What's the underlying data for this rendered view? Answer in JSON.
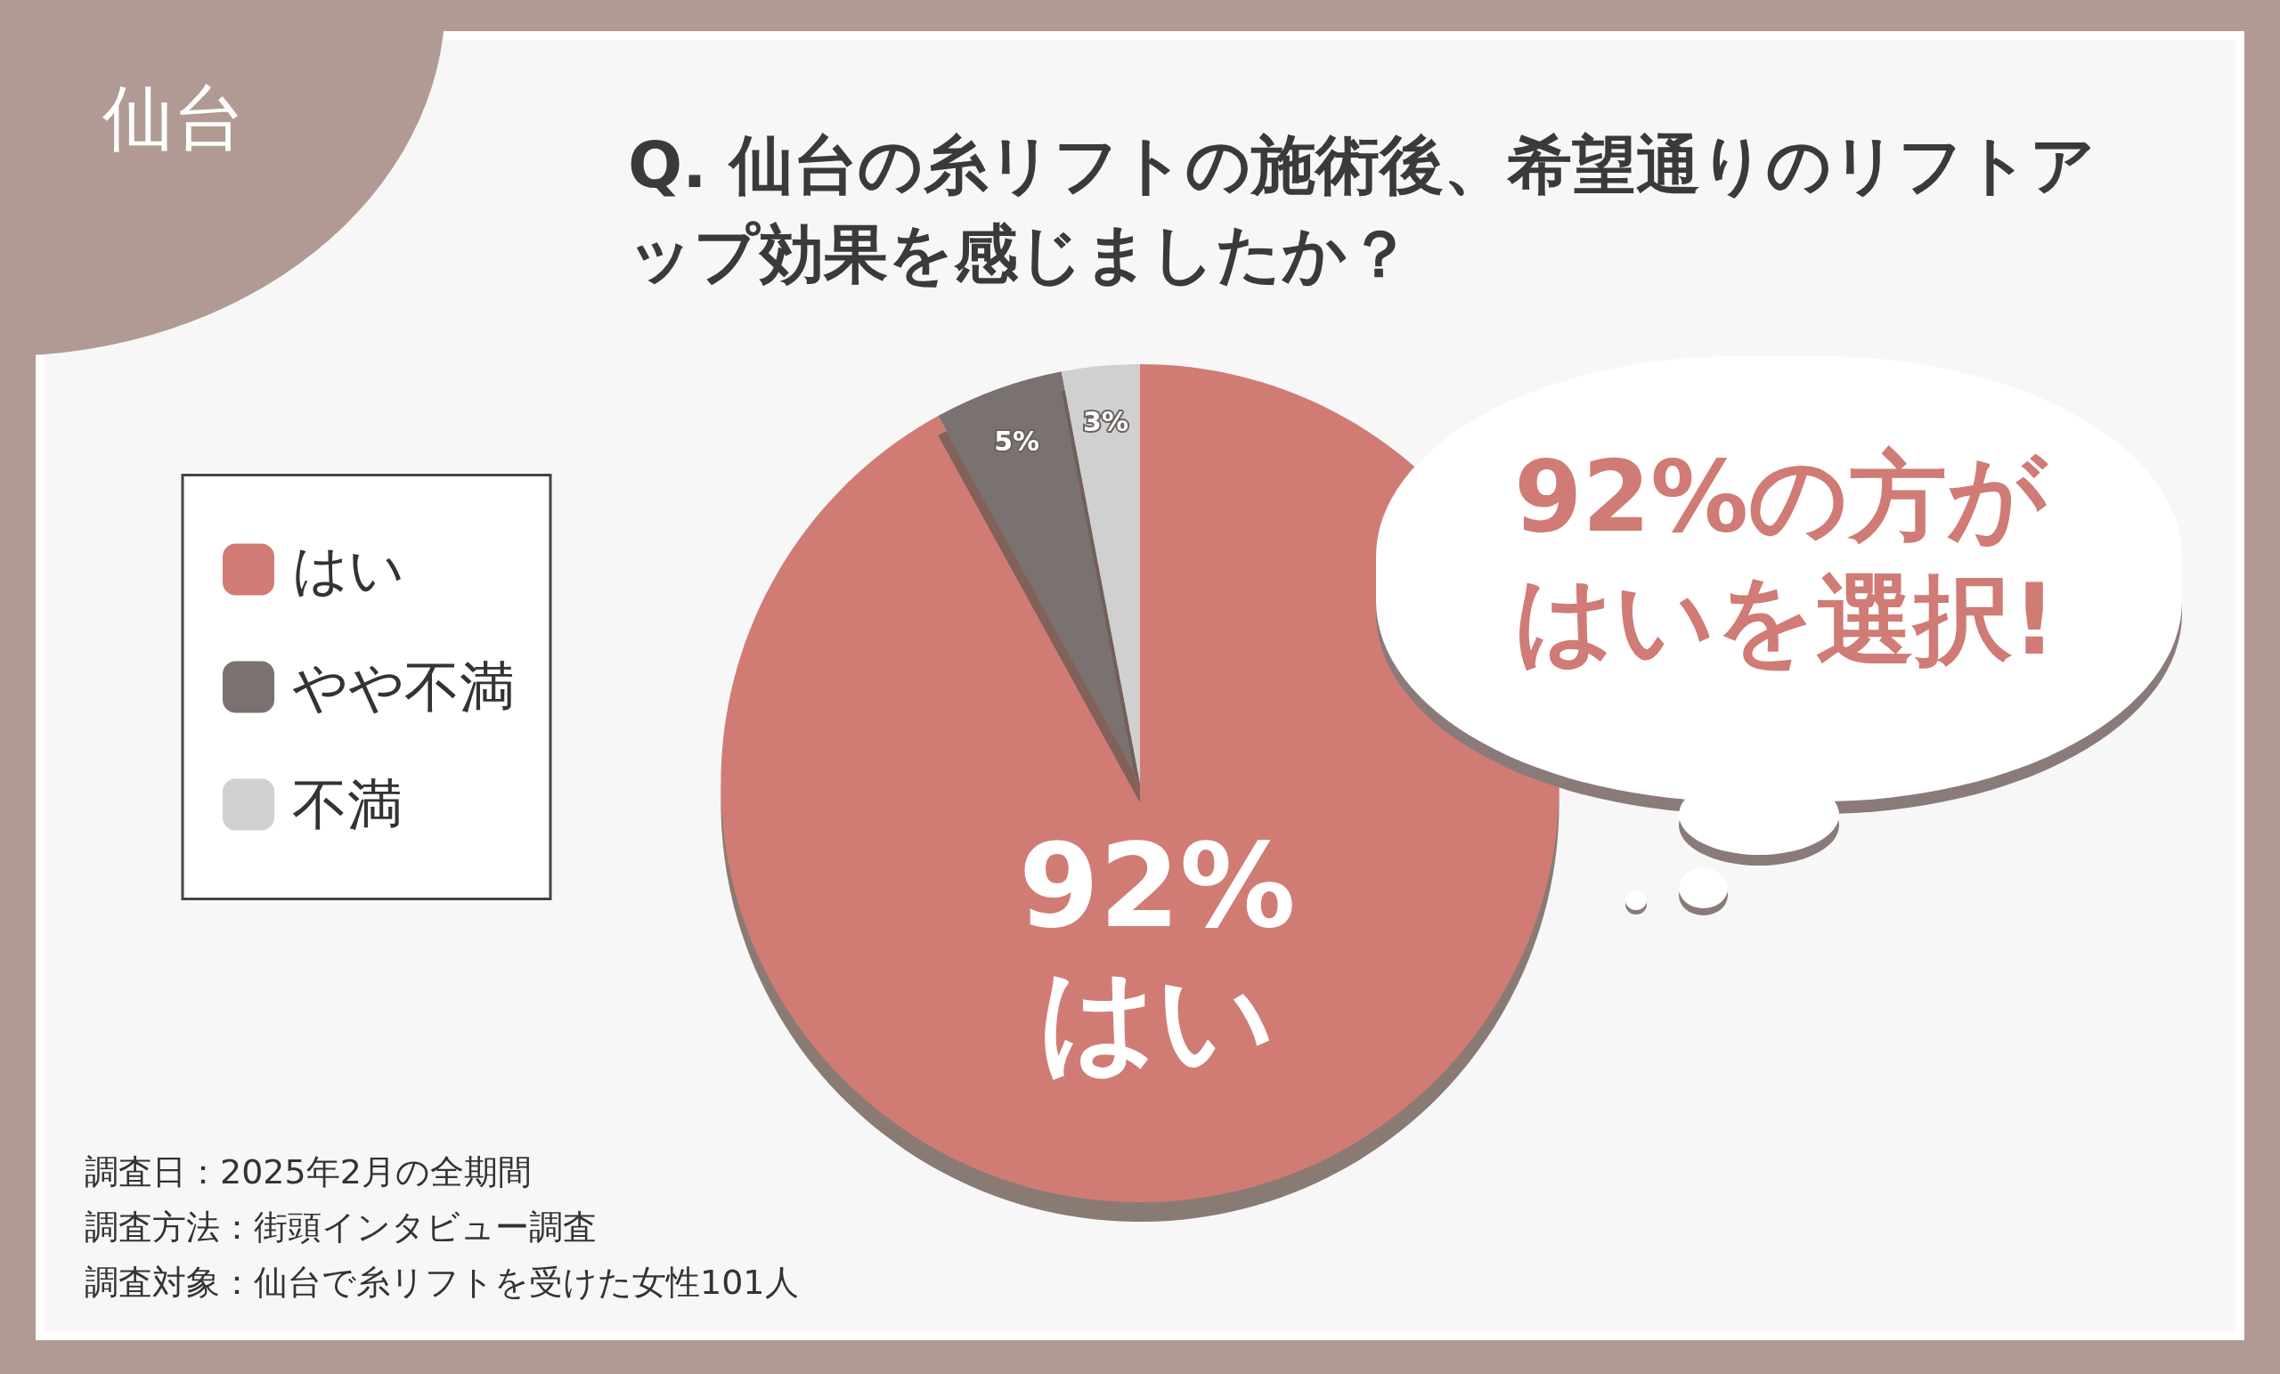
{
  "chart_data": {
    "type": "pie",
    "title": "Q. 仙台の糸リフトの施術後、希望通りのリフトアップ効果を感じましたか？",
    "categories": [
      "はい",
      "やや不満",
      "不満"
    ],
    "values": [
      92,
      5,
      3
    ],
    "colors": [
      "#d07b75",
      "#7a7270",
      "#d0d0d0"
    ],
    "value_labels": [
      "92%\nはい",
      "5%",
      "3%"
    ],
    "legend": "left",
    "annotations": [
      "仙台",
      "92%の方がはいを選択!",
      "調査日：2025年2月の全期間",
      "調査方法：街頭インタビュー調査",
      "調査対象：仙台で糸リフトを受けた女性101人"
    ]
  }
}
